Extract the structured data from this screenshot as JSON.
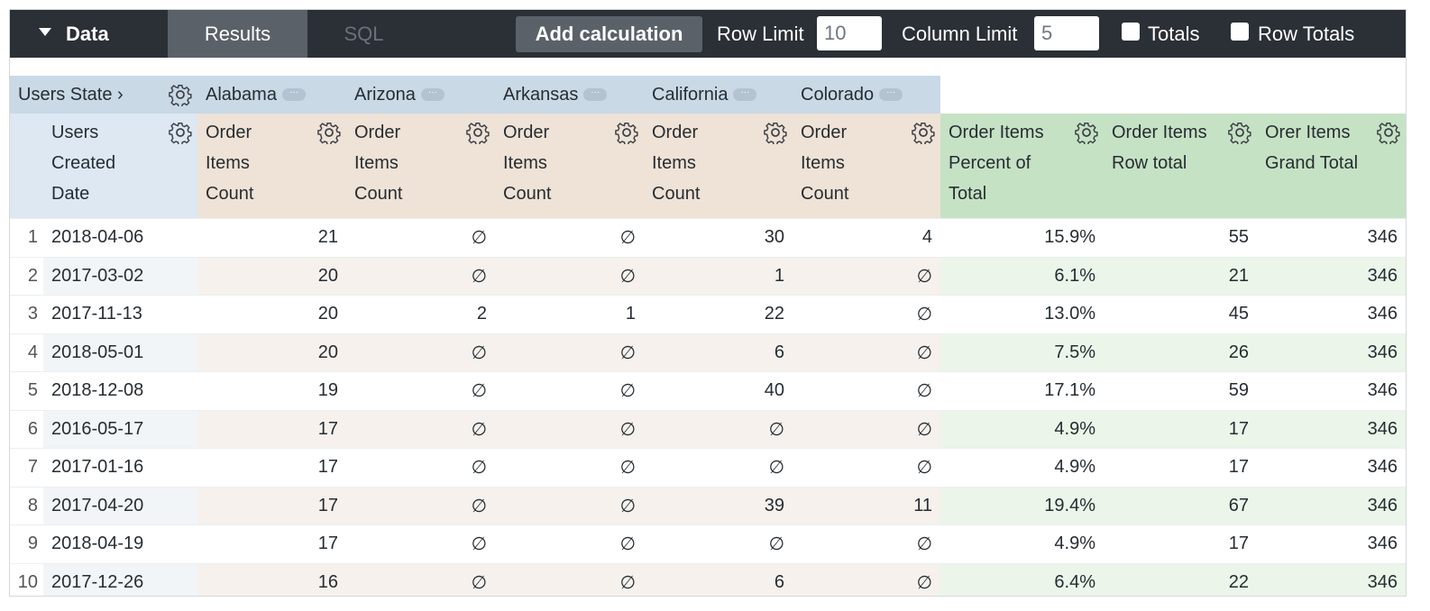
{
  "toolbar": {
    "section": "Data",
    "tabs": [
      "Results",
      "SQL"
    ],
    "button": "Add calculation",
    "row_limit_label": "Row Limit",
    "row_limit": "10",
    "column_limit_label": "Column Limit",
    "column_limit": "5",
    "totals": "Totals",
    "row_totals": "Row Totals"
  },
  "table": {
    "pivot_label": "Users State",
    "pivots": [
      "Alabama",
      "Arizona",
      "Arkansas",
      "California",
      "Colorado"
    ],
    "dimension_header": "Users Created Date",
    "measure_headers": [
      "Order Items Count",
      "Order Items Count",
      "Order Items Count",
      "Order Items Count",
      "Order Items Count"
    ],
    "calc_headers": [
      "Order Items Percent of Total",
      "Order Items Row total",
      "Orer Items Grand Total"
    ],
    "rows": [
      {
        "index": 1,
        "cells": [
          "2018-04-06",
          "21",
          "∅",
          "∅",
          "30",
          "4",
          "15.9%",
          "55",
          "346"
        ]
      },
      {
        "index": 2,
        "cells": [
          "2017-03-02",
          "20",
          "∅",
          "∅",
          "1",
          "∅",
          "6.1%",
          "21",
          "346"
        ]
      },
      {
        "index": 3,
        "cells": [
          "2017-11-13",
          "20",
          "2",
          "1",
          "22",
          "∅",
          "13.0%",
          "45",
          "346"
        ]
      },
      {
        "index": 4,
        "cells": [
          "2018-05-01",
          "20",
          "∅",
          "∅",
          "6",
          "∅",
          "7.5%",
          "26",
          "346"
        ]
      },
      {
        "index": 5,
        "cells": [
          "2018-12-08",
          "19",
          "∅",
          "∅",
          "40",
          "∅",
          "17.1%",
          "59",
          "346"
        ]
      },
      {
        "index": 6,
        "cells": [
          "2016-05-17",
          "17",
          "∅",
          "∅",
          "∅",
          "∅",
          "4.9%",
          "17",
          "346"
        ]
      },
      {
        "index": 7,
        "cells": [
          "2017-01-16",
          "17",
          "∅",
          "∅",
          "∅",
          "∅",
          "4.9%",
          "17",
          "346"
        ]
      },
      {
        "index": 8,
        "cells": [
          "2017-04-20",
          "17",
          "∅",
          "∅",
          "39",
          "11",
          "19.4%",
          "67",
          "346"
        ]
      },
      {
        "index": 9,
        "cells": [
          "2018-04-19",
          "17",
          "∅",
          "∅",
          "∅",
          "∅",
          "4.9%",
          "17",
          "346"
        ]
      },
      {
        "index": 10,
        "cells": [
          "2017-12-26",
          "16",
          "∅",
          "∅",
          "6",
          "∅",
          "6.4%",
          "22",
          "346"
        ]
      }
    ]
  }
}
